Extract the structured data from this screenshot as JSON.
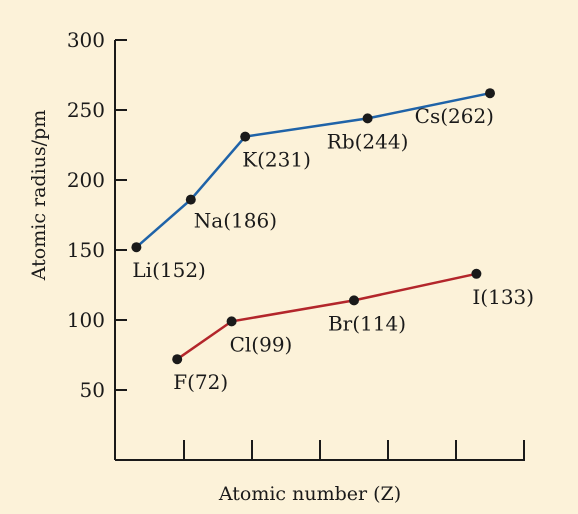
{
  "chart_data": {
    "type": "line",
    "xlabel": "Atomic number (Z)",
    "ylabel": "Atomic radius/pm",
    "ylim": [
      0,
      300
    ],
    "yticks": [
      50,
      100,
      150,
      200,
      250,
      300
    ],
    "x_ticks_labeled": false,
    "grid": false,
    "colors": {
      "background": "#fcf2d9",
      "alkali": "#1f63a8",
      "halogen": "#b3262b",
      "point": "#1a1a1a",
      "axis": "#1a1a1a"
    },
    "series": [
      {
        "group": "alkali",
        "points": [
          {
            "x": 3,
            "y": 152,
            "label": "Li(152)"
          },
          {
            "x": 11,
            "y": 186,
            "label": "Na(186)"
          },
          {
            "x": 19,
            "y": 231,
            "label": "K(231)"
          },
          {
            "x": 37,
            "y": 244,
            "label": "Rb(244)"
          },
          {
            "x": 55,
            "y": 262,
            "label": "Cs(262)"
          }
        ]
      },
      {
        "group": "halogen",
        "points": [
          {
            "x": 9,
            "y": 72,
            "label": "F(72)"
          },
          {
            "x": 17,
            "y": 99,
            "label": "Cl(99)"
          },
          {
            "x": 35,
            "y": 114,
            "label": "Br(114)"
          },
          {
            "x": 53,
            "y": 133,
            "label": "I(133)"
          }
        ]
      }
    ]
  }
}
